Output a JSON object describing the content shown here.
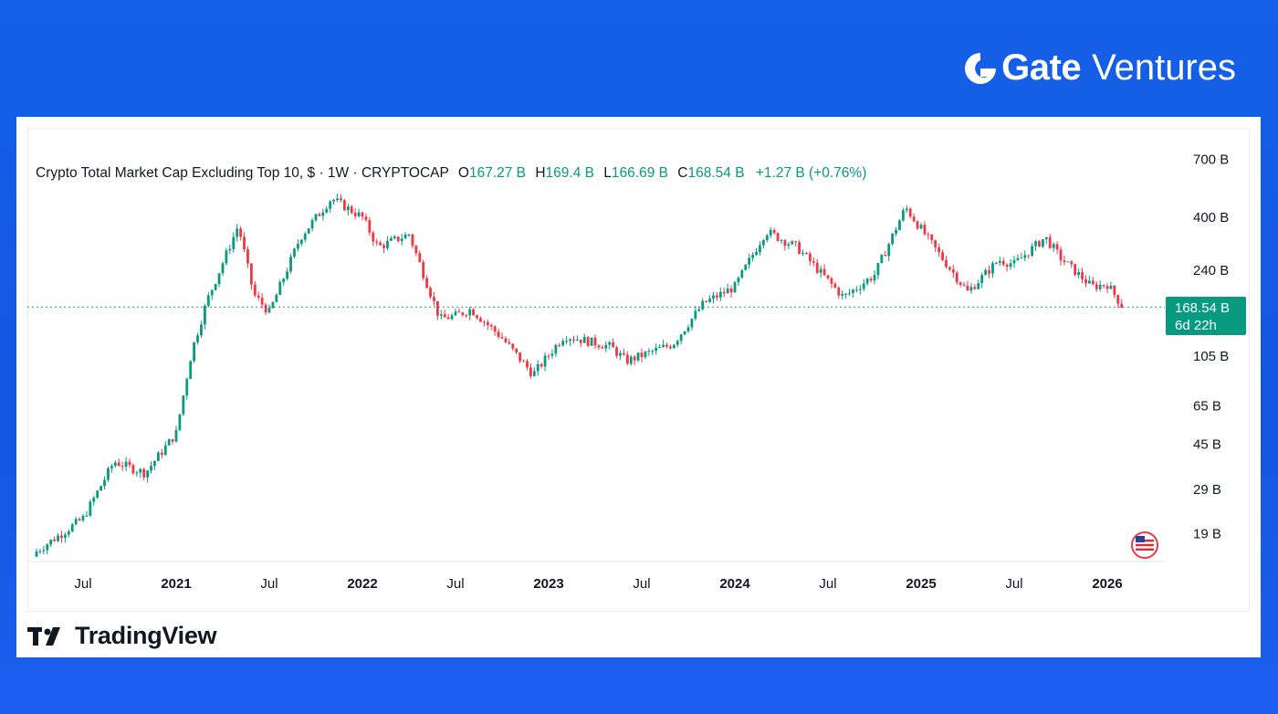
{
  "brand": {
    "name_bold": "Gate",
    "name_light": "Ventures",
    "logo_icon": "gate-g-icon"
  },
  "footer": {
    "logo_text": "TradingView",
    "logo_icon": "tradingview-tv-icon"
  },
  "colors": {
    "up": "#089981",
    "down": "#f23645",
    "background_blue": "#1560e8",
    "price_line": "#089981"
  },
  "header": {
    "symbol": "Crypto Total Market Cap Excluding Top 10, $ · 1W · CRYPTOCAP",
    "o_label": "O",
    "o_value": "167.27 B",
    "h_label": "H",
    "h_value": "169.4 B",
    "l_label": "L",
    "l_value": "166.69 B",
    "c_label": "C",
    "c_value": "168.54 B",
    "change": "+1.27 B (+0.76%)"
  },
  "price_label": {
    "value": "168.54 B",
    "countdown": "6d 22h"
  },
  "chart_data": {
    "type": "candlestick",
    "title": "Crypto Total Market Cap Excluding Top 10, $ · 1W · CRYPTOCAP",
    "interval": "1W",
    "y_scale": "log",
    "y_unit": "B USD",
    "y_ticks": [
      "700 B",
      "400 B",
      "240 B",
      "105 B",
      "65 B",
      "45 B",
      "29 B",
      "19 B"
    ],
    "y_tick_values": [
      700,
      400,
      240,
      105,
      65,
      45,
      29,
      19
    ],
    "x_ticks": [
      "Jul",
      "2021",
      "Jul",
      "2022",
      "Jul",
      "2023",
      "Jul",
      "2024",
      "Jul",
      "2025",
      "Jul",
      "2026"
    ],
    "x_ticks_bold": [
      false,
      true,
      false,
      true,
      false,
      true,
      false,
      true,
      false,
      true,
      false,
      true
    ],
    "x_tick_dates": [
      "2020-07",
      "2021-01",
      "2021-07",
      "2022-01",
      "2022-07",
      "2023-01",
      "2023-07",
      "2024-01",
      "2024-07",
      "2025-01",
      "2025-07",
      "2026-01"
    ],
    "last_close": 168.54,
    "series_anchors_weekly_close": [
      {
        "date": "2020-04",
        "value": 16
      },
      {
        "date": "2020-07",
        "value": 22
      },
      {
        "date": "2020-09",
        "value": 38
      },
      {
        "date": "2020-11",
        "value": 34
      },
      {
        "date": "2021-01",
        "value": 50
      },
      {
        "date": "2021-02",
        "value": 110
      },
      {
        "date": "2021-03",
        "value": 180
      },
      {
        "date": "2021-05",
        "value": 370
      },
      {
        "date": "2021-06",
        "value": 190
      },
      {
        "date": "2021-07",
        "value": 160
      },
      {
        "date": "2021-09",
        "value": 330
      },
      {
        "date": "2021-11",
        "value": 480
      },
      {
        "date": "2022-01",
        "value": 400
      },
      {
        "date": "2022-02",
        "value": 300
      },
      {
        "date": "2022-04",
        "value": 340
      },
      {
        "date": "2022-06",
        "value": 150
      },
      {
        "date": "2022-07",
        "value": 155
      },
      {
        "date": "2022-08",
        "value": 165
      },
      {
        "date": "2022-10",
        "value": 125
      },
      {
        "date": "2022-12",
        "value": 88
      },
      {
        "date": "2023-02",
        "value": 128
      },
      {
        "date": "2023-05",
        "value": 115
      },
      {
        "date": "2023-06",
        "value": 100
      },
      {
        "date": "2023-09",
        "value": 118
      },
      {
        "date": "2023-11",
        "value": 175
      },
      {
        "date": "2024-01",
        "value": 205
      },
      {
        "date": "2024-03",
        "value": 350
      },
      {
        "date": "2024-05",
        "value": 300
      },
      {
        "date": "2024-08",
        "value": 185
      },
      {
        "date": "2024-10",
        "value": 230
      },
      {
        "date": "2024-12",
        "value": 440
      },
      {
        "date": "2025-02",
        "value": 290
      },
      {
        "date": "2025-04",
        "value": 195
      },
      {
        "date": "2025-06",
        "value": 265
      },
      {
        "date": "2025-07",
        "value": 255
      },
      {
        "date": "2025-09",
        "value": 330
      },
      {
        "date": "2025-10",
        "value": 270
      },
      {
        "date": "2025-12",
        "value": 205
      },
      {
        "date": "2026-01",
        "value": 210
      },
      {
        "date": "2026-02",
        "value": 168.54
      }
    ],
    "grid": false
  }
}
